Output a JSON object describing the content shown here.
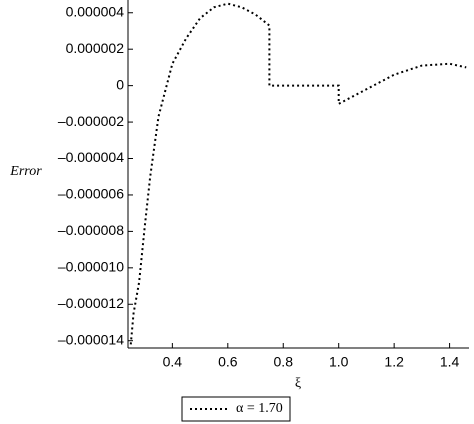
{
  "chart_data": {
    "type": "line",
    "y_label": "Error",
    "x_label": "ξ",
    "xlim": [
      0.24,
      1.47
    ],
    "xticks": [
      0.4,
      0.6,
      0.8,
      {
        "value": 1.0,
        "label": "1.0"
      },
      1.2,
      1.4
    ],
    "ylim": [
      -1.44e-05,
      4.7e-06
    ],
    "yticks": [
      {
        "value": 4e-06,
        "label": "0.000004"
      },
      {
        "value": 2e-06,
        "label": "0.000002"
      },
      0,
      {
        "value": -2e-06,
        "label": "–0.000002"
      },
      {
        "value": -4e-06,
        "label": "–0.000004"
      },
      {
        "value": -6e-06,
        "label": "–0.000006"
      },
      {
        "value": -8e-06,
        "label": "–0.000008"
      },
      {
        "value": -1e-05,
        "label": "–0.000010"
      },
      {
        "value": -1.2e-05,
        "label": "–0.000012"
      },
      {
        "value": -1.4e-05,
        "label": "–0.000014"
      }
    ],
    "legend": "bottom",
    "series": [
      {
        "name": "α = 1.70",
        "color": "#000000",
        "x": [
          0.25,
          0.26,
          0.28,
          0.3,
          0.32,
          0.35,
          0.4,
          0.45,
          0.5,
          0.55,
          0.6,
          0.65,
          0.7,
          0.75,
          0.75,
          1.0,
          1.0,
          1.05,
          1.1,
          1.2,
          1.3,
          1.4,
          1.46
        ],
        "values": [
          -1.42e-05,
          -1.25e-05,
          -1.08e-05,
          -7.8e-06,
          -5e-06,
          -1.7e-06,
          1.2e-06,
          2.6e-06,
          3.7e-06,
          4.3e-06,
          4.5e-06,
          4.3e-06,
          3.9e-06,
          3.3e-06,
          0,
          0,
          -1e-06,
          -6e-07,
          -2e-07,
          6e-07,
          1.1e-06,
          1.2e-06,
          1e-06
        ]
      }
    ]
  }
}
